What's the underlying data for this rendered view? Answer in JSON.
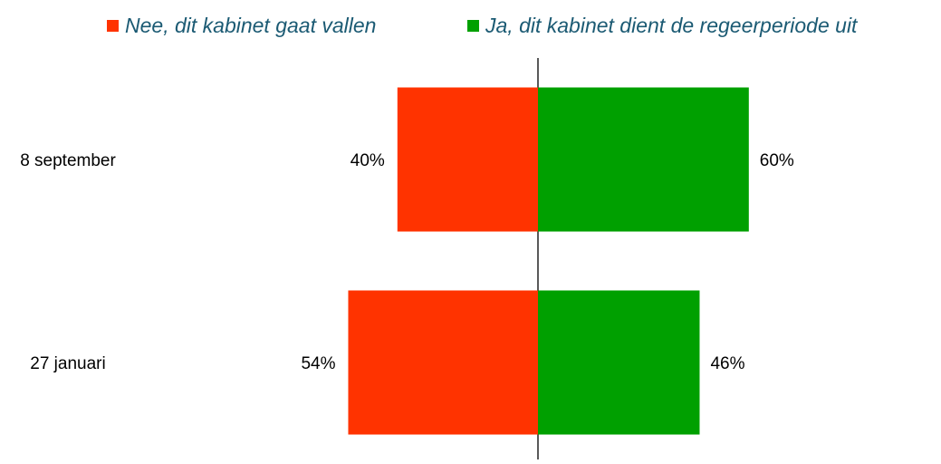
{
  "chart_data": {
    "type": "diverging-bar",
    "categories": [
      "8 september",
      "27 januari"
    ],
    "series": [
      {
        "name": "Nee, dit kabinet gaat vallen",
        "color": "#ff3300",
        "values": [
          40,
          54
        ],
        "value_labels": [
          "40%",
          "54%"
        ]
      },
      {
        "name": "Ja, dit kabinet dient de regeerperiode uit",
        "color": "#00a000",
        "values": [
          60,
          46
        ],
        "value_labels": [
          "60%",
          "46%"
        ]
      }
    ]
  }
}
